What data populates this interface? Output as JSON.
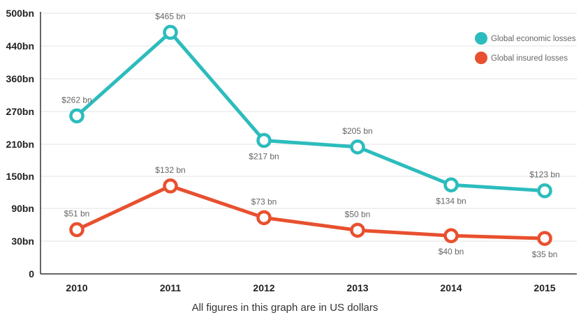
{
  "chart_data": {
    "type": "line",
    "title": "",
    "xlabel": "All figures in this graph are in US dollars",
    "ylabel": "",
    "categories": [
      "2010",
      "2011",
      "2012",
      "2013",
      "2014",
      "2015"
    ],
    "y_ticks": [
      {
        "label": "0",
        "value": 0
      },
      {
        "label": "30bn",
        "value": 30
      },
      {
        "label": "90bn",
        "value": 90
      },
      {
        "label": "150bn",
        "value": 150
      },
      {
        "label": "210bn",
        "value": 210
      },
      {
        "label": "270bn",
        "value": 270
      },
      {
        "label": "360bn",
        "value": 360
      },
      {
        "label": "440bn",
        "value": 440
      },
      {
        "label": "500bn",
        "value": 500
      }
    ],
    "series": [
      {
        "name": "Global economic losses",
        "color": "#2dbcbd",
        "values": [
          262,
          465,
          217,
          205,
          134,
          123
        ],
        "labels": [
          "$262 bn",
          "$465 bn",
          "$217 bn",
          "$205 bn",
          "$134 bn",
          "$123 bn"
        ],
        "label_positions": [
          "above",
          "above",
          "below",
          "above",
          "below",
          "above"
        ]
      },
      {
        "name": "Global insured losses",
        "color": "#e8502f",
        "values": [
          51,
          132,
          73,
          50,
          40,
          35
        ],
        "labels": [
          "$51 bn",
          "$132 bn",
          "$73 bn",
          "$50 bn",
          "$40 bn",
          "$35 bn"
        ],
        "label_positions": [
          "above",
          "above",
          "above",
          "above",
          "below",
          "below"
        ]
      }
    ],
    "grid": true,
    "legend": "top-right"
  }
}
